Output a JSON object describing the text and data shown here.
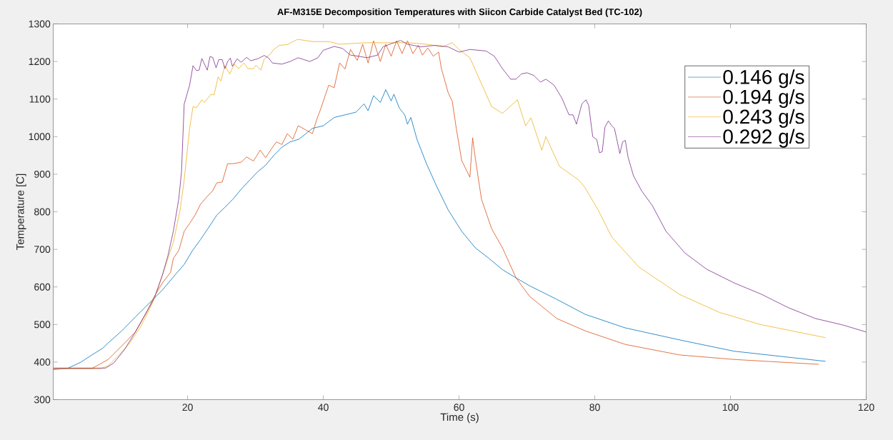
{
  "chart_data": {
    "type": "line",
    "title": "AF-M315E Decomposition Temperatures with Siicon Carbide Catalyst Bed (TC-102)",
    "xlabel": "Time (s)",
    "ylabel": "Temperature [C]",
    "xlim": [
      0.2,
      120
    ],
    "ylim": [
      300,
      1300
    ],
    "xticks": [
      20,
      40,
      60,
      80,
      100,
      120
    ],
    "yticks": [
      300,
      400,
      500,
      600,
      700,
      800,
      900,
      1000,
      1100,
      1200,
      1300
    ],
    "legend": "top right",
    "marker": "none",
    "line_style": "solid",
    "series": [
      {
        "name": "0.146 g/s",
        "color": "#0072bd",
        "x": [
          0.2,
          2.3,
          4.3,
          5.9,
          7.5,
          8.3,
          10.3,
          12.3,
          15.1,
          16.3,
          18.3,
          19.5,
          20.7,
          21.9,
          23.1,
          24.3,
          25.5,
          26.7,
          27.9,
          29.2,
          30.3,
          31.5,
          32.7,
          33.9,
          35.1,
          36.4,
          38.4,
          40,
          41.6,
          43.2,
          44.8,
          46,
          46.6,
          47.4,
          48.4,
          49.2,
          50,
          50.4,
          51.2,
          52,
          52.4,
          52.9,
          53.8,
          55.2,
          56.8,
          58.4,
          60.4,
          62.4,
          64.4,
          66.4,
          68.4,
          70.4,
          74.4,
          78.6,
          84.5,
          92.5,
          100.5,
          114
        ],
        "values": [
          380,
          383,
          400,
          419,
          437,
          451,
          483,
          520,
          570,
          592,
          635,
          660,
          696,
          726,
          758,
          791,
          812,
          834,
          860,
          885,
          906,
          924,
          950,
          972,
          986,
          993,
          1022,
          1029,
          1051,
          1058,
          1065,
          1087,
          1069,
          1109,
          1091,
          1125,
          1095,
          1113,
          1076,
          1058,
          1033,
          1051,
          993,
          928,
          864,
          805,
          748,
          704,
          676,
          646,
          624,
          603,
          567,
          527,
          491,
          459,
          429,
          402
        ]
      },
      {
        "name": "0.194 g/s",
        "color": "#d95319",
        "x": [
          0.2,
          5.9,
          8.3,
          10.3,
          12.3,
          13.9,
          15.1,
          16.3,
          17.5,
          17.9,
          18.7,
          19.5,
          20.3,
          21.1,
          21.9,
          22.9,
          23.7,
          24.3,
          25.1,
          25.9,
          26.7,
          27.9,
          28.7,
          29.7,
          30.7,
          31.5,
          32.3,
          33.1,
          33.9,
          34.7,
          35.5,
          36.3,
          38.4,
          39,
          39.6,
          40.8,
          41.6,
          42.4,
          43.2,
          44,
          45,
          45.8,
          46.6,
          47.4,
          48.4,
          49.2,
          50,
          50.8,
          51.6,
          52.4,
          53.2,
          54,
          54.6,
          55.4,
          56.2,
          57,
          57.4,
          58.4,
          59,
          59.6,
          60.4,
          61.6,
          62,
          62.4,
          63.3,
          64.8,
          66.4,
          68.4,
          70.4,
          74.4,
          78.6,
          84.5,
          92.5,
          100.5,
          113
        ],
        "values": [
          383,
          383,
          407,
          443,
          480,
          531,
          575,
          611,
          639,
          676,
          697,
          748,
          769,
          791,
          820,
          841,
          856,
          877,
          879,
          928,
          928,
          932,
          946,
          935,
          964,
          944,
          966,
          986,
          979,
          1008,
          993,
          1029,
          1008,
          1044,
          1073,
          1137,
          1130,
          1196,
          1180,
          1232,
          1203,
          1246,
          1196,
          1255,
          1200,
          1246,
          1214,
          1255,
          1221,
          1255,
          1221,
          1243,
          1217,
          1236,
          1214,
          1225,
          1181,
          1117,
          1094,
          1021,
          936,
          892,
          997,
          942,
          834,
          755,
          704,
          624,
          575,
          516,
          483,
          447,
          419,
          407,
          394
        ]
      },
      {
        "name": "0.243 g/s",
        "color": "#edb120",
        "x": [
          0.2,
          7.1,
          8.3,
          9.9,
          11.5,
          13.1,
          14.7,
          15.9,
          17.1,
          17.9,
          18.9,
          19.5,
          20.3,
          20.8,
          21.3,
          22.1,
          22.5,
          23.1,
          23.5,
          23.9,
          24.5,
          24.9,
          25.5,
          26.2,
          26.9,
          27.5,
          28.3,
          28.9,
          29.7,
          30.1,
          30.8,
          31.3,
          32.1,
          32.7,
          33.5,
          34.7,
          36.2,
          38.4,
          40.8,
          42.4,
          46.4,
          52.4,
          55.2,
          57.6,
          59,
          60,
          61.6,
          64.8,
          66.4,
          68.6,
          69.8,
          70.6,
          72.2,
          72.8,
          74.8,
          77.6,
          78.5,
          80.5,
          82.5,
          86.5,
          92.5,
          98.4,
          104.4,
          114
        ],
        "values": [
          382,
          382,
          390,
          419,
          451,
          495,
          552,
          611,
          676,
          719,
          805,
          885,
          1022,
          1080,
          1077,
          1098,
          1091,
          1105,
          1113,
          1111,
          1159,
          1148,
          1189,
          1167,
          1193,
          1181,
          1196,
          1181,
          1181,
          1190,
          1177,
          1207,
          1218,
          1232,
          1243,
          1245,
          1259,
          1253,
          1253,
          1246,
          1250,
          1250,
          1246,
          1239,
          1250,
          1232,
          1210,
          1080,
          1062,
          1098,
          1029,
          1050,
          964,
          1000,
          921,
          885,
          866,
          805,
          733,
          653,
          580,
          532,
          500,
          465
        ]
      },
      {
        "name": "0.292 g/s",
        "color": "#7e2f8e",
        "x": [
          0.2,
          7.9,
          9.1,
          10.7,
          12.3,
          13.9,
          15.1,
          16.3,
          17.1,
          17.9,
          18.7,
          19.1,
          19.5,
          20.3,
          20.8,
          21.3,
          21.7,
          22.1,
          22.9,
          23.3,
          23.7,
          24.2,
          24.6,
          25.1,
          25.5,
          25.9,
          26.3,
          26.6,
          27.3,
          27.9,
          28.7,
          29.3,
          30.3,
          31.3,
          31.9,
          32.5,
          33.9,
          35.1,
          36.3,
          38,
          39.2,
          40,
          41.6,
          42.8,
          44,
          45.2,
          46.4,
          48,
          48.8,
          50.4,
          51.4,
          52.4,
          54.4,
          56.4,
          58.4,
          60,
          61.6,
          64,
          65.2,
          66.4,
          67.6,
          68.4,
          69.2,
          70,
          71,
          72,
          72.8,
          74,
          75.2,
          76.2,
          76.8,
          77.3,
          78.1,
          78.7,
          79.1,
          79.7,
          80.3,
          80.7,
          81.1,
          81.5,
          82,
          82.5,
          82.9,
          83.7,
          84.1,
          84.5,
          84.9,
          85.7,
          86.9,
          88.5,
          90.5,
          93.3,
          96.5,
          100.5,
          104.5,
          108.5,
          112.5,
          116.5,
          120
        ],
        "values": [
          384,
          384,
          397,
          433,
          480,
          531,
          570,
          632,
          683,
          748,
          834,
          906,
          1087,
          1137,
          1189,
          1176,
          1177,
          1208,
          1177,
          1213,
          1211,
          1183,
          1205,
          1205,
          1181,
          1200,
          1209,
          1187,
          1207,
          1198,
          1211,
          1202,
          1207,
          1216,
          1210,
          1196,
          1193,
          1200,
          1210,
          1200,
          1210,
          1230,
          1240,
          1235,
          1217,
          1214,
          1210,
          1217,
          1239,
          1250,
          1256,
          1246,
          1239,
          1243,
          1239,
          1225,
          1232,
          1228,
          1214,
          1181,
          1153,
          1153,
          1167,
          1170,
          1163,
          1145,
          1153,
          1137,
          1101,
          1058,
          1058,
          1033,
          1087,
          1098,
          1084,
          1000,
          992,
          957,
          960,
          1025,
          1042,
          1029,
          1022,
          955,
          986,
          990,
          946,
          896,
          856,
          816,
          748,
          690,
          647,
          611,
          581,
          545,
          516,
          499,
          480
        ]
      }
    ]
  }
}
